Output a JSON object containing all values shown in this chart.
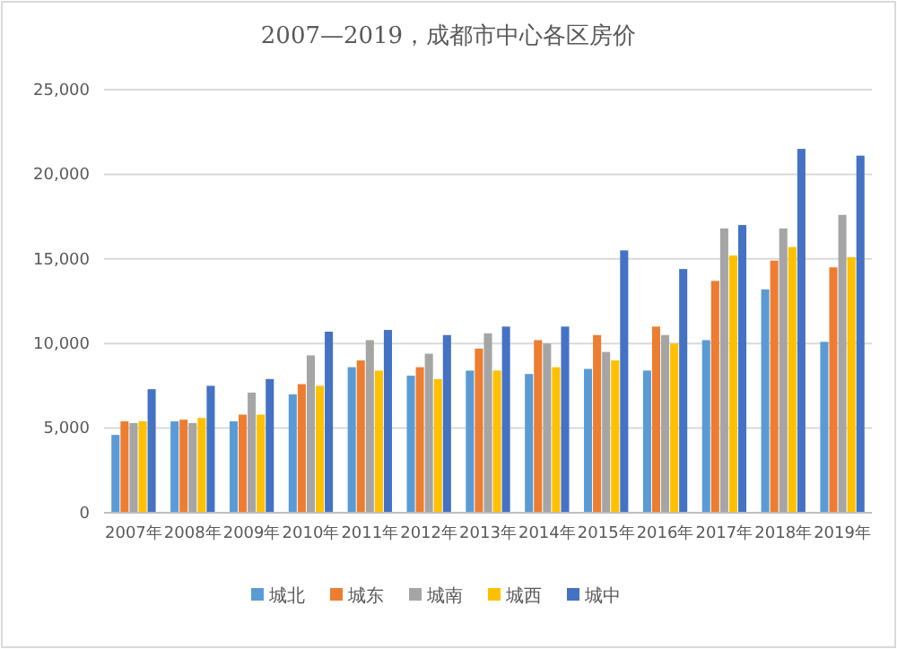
{
  "chart_data": {
    "type": "bar",
    "title": "2007—2019，成都市中心各区房价",
    "categories": [
      "2007年",
      "2008年",
      "2009年",
      "2010年",
      "2011年",
      "2012年",
      "2013年",
      "2014年",
      "2015年",
      "2016年",
      "2017年",
      "2018年",
      "2019年"
    ],
    "series": [
      {
        "name": "城北",
        "color": "#5b9bd5",
        "values": [
          4600,
          5400,
          5400,
          7000,
          8600,
          8100,
          8400,
          8200,
          8500,
          8400,
          10200,
          13200,
          10100
        ]
      },
      {
        "name": "城东",
        "color": "#ed7d31",
        "values": [
          5400,
          5500,
          5800,
          7600,
          9000,
          8600,
          9700,
          10200,
          10500,
          11000,
          13700,
          14900,
          14500
        ]
      },
      {
        "name": "城南",
        "color": "#a5a5a5",
        "values": [
          5300,
          5300,
          7100,
          9300,
          10200,
          9400,
          10600,
          10000,
          9500,
          10500,
          16800,
          16800,
          17600
        ]
      },
      {
        "name": "城西",
        "color": "#ffc000",
        "values": [
          5400,
          5600,
          5800,
          7500,
          8400,
          7900,
          8400,
          8600,
          9000,
          10000,
          15200,
          15700,
          15100
        ]
      },
      {
        "name": "城中",
        "color": "#4472c4",
        "values": [
          7300,
          7500,
          7900,
          10700,
          10800,
          10500,
          11000,
          11000,
          15500,
          14400,
          17000,
          21500,
          21100
        ]
      }
    ],
    "ylim": [
      0,
      25000
    ],
    "yticks": [
      {
        "value": 0,
        "label": "0"
      },
      {
        "value": 5000,
        "label": "5,000"
      },
      {
        "value": 10000,
        "label": "10,000"
      },
      {
        "value": 15000,
        "label": "15,000"
      },
      {
        "value": 20000,
        "label": "20,000"
      },
      {
        "value": 25000,
        "label": "25,000"
      }
    ],
    "grid": "y",
    "legend": "bottom"
  }
}
